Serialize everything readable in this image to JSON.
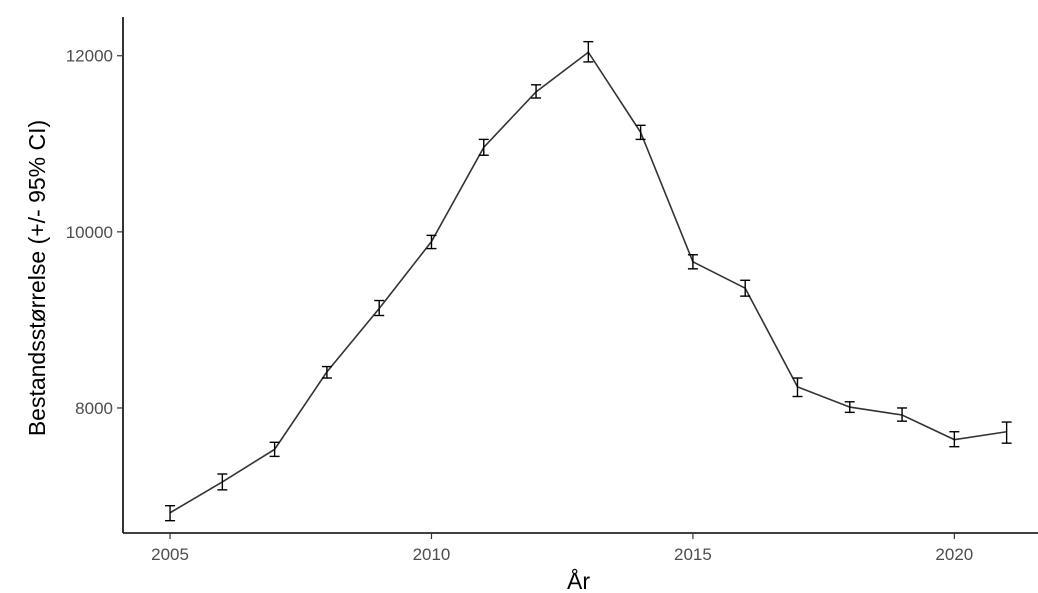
{
  "chart_data": {
    "type": "line",
    "title": "",
    "xlabel": "År",
    "ylabel": "Bestandsstørrelse (+/- 95% CI)",
    "xlim": [
      2004.1,
      2021.6
    ],
    "ylim": [
      6580,
      12440
    ],
    "x_ticks": [
      2005,
      2010,
      2015,
      2020
    ],
    "x_tick_labels": [
      "2005",
      "2010",
      "2015",
      "2020"
    ],
    "y_ticks": [
      8000,
      10000,
      12000
    ],
    "y_tick_labels": [
      "8000",
      "10000",
      "12000"
    ],
    "grid": false,
    "legend": "none",
    "series": [
      {
        "x": [
          2005,
          2006,
          2007,
          2008,
          2009,
          2010,
          2011,
          2012,
          2013,
          2014,
          2015,
          2016,
          2017,
          2018,
          2019,
          2020,
          2021
        ],
        "y": [
          6810,
          7160,
          7530,
          8410,
          9130,
          9890,
          10960,
          11590,
          12040,
          11130,
          9660,
          9360,
          8240,
          8010,
          7920,
          7640,
          7730
        ],
        "ci_low": [
          6720,
          7070,
          7450,
          8340,
          9050,
          9810,
          10870,
          11520,
          11930,
          11050,
          9580,
          9270,
          8130,
          7950,
          7850,
          7560,
          7600
        ],
        "ci_high": [
          6890,
          7250,
          7610,
          8470,
          9220,
          9960,
          11050,
          11670,
          12160,
          11210,
          9740,
          9450,
          8340,
          8070,
          8000,
          7730,
          7840
        ]
      }
    ]
  }
}
